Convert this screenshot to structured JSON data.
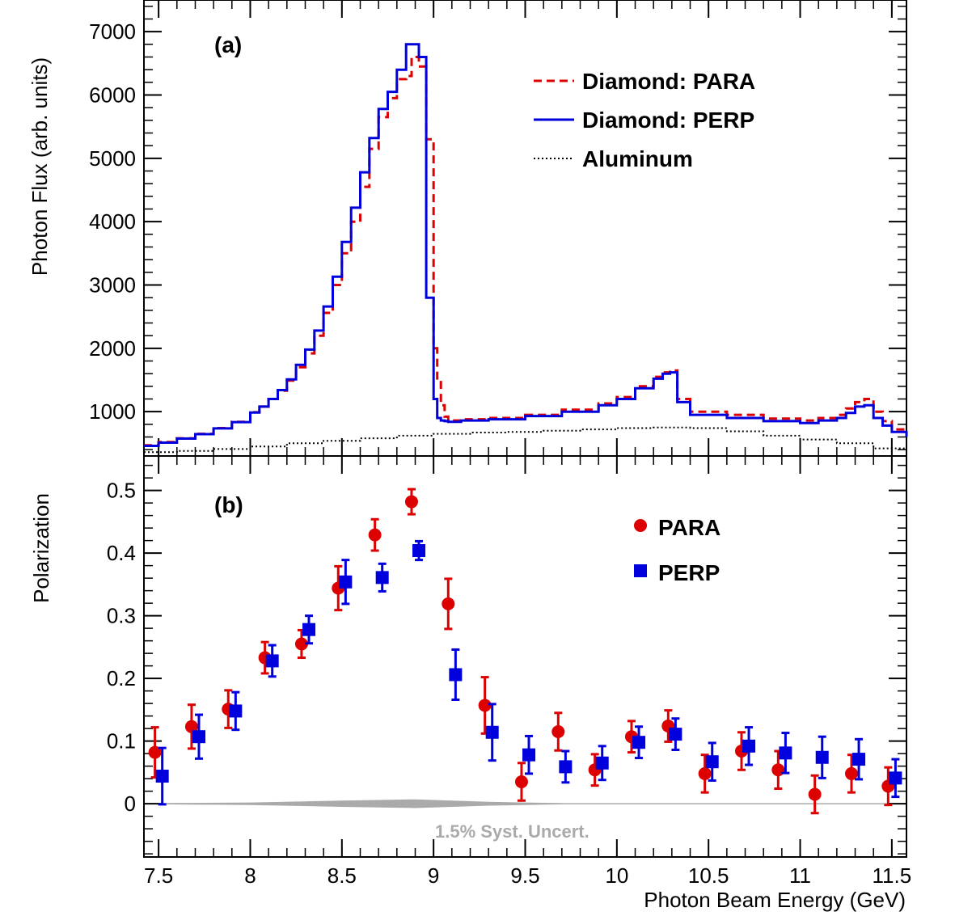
{
  "chart_data": [
    {
      "panel": "top",
      "panel_label": "(a)",
      "type": "line",
      "drawstyle": "steps",
      "ylabel": "Photon Flux (arb. units)",
      "xlabel": "",
      "xlim": [
        7.42,
        11.58
      ],
      "ylim": [
        300,
        7500
      ],
      "yticks": [
        1000,
        2000,
        3000,
        4000,
        5000,
        6000,
        7000
      ],
      "ytick_labels": [
        "1000",
        "2000",
        "3000",
        "4000",
        "5000",
        "6000",
        "7000"
      ],
      "legend_position": "top-right",
      "series": [
        {
          "name": "Diamond: PARA",
          "color": "#dd0000",
          "linestyle": "dashed",
          "x": [
            7.42,
            7.5,
            7.6,
            7.7,
            7.8,
            7.9,
            8.0,
            8.05,
            8.1,
            8.15,
            8.2,
            8.25,
            8.3,
            8.35,
            8.4,
            8.45,
            8.5,
            8.55,
            8.6,
            8.65,
            8.7,
            8.75,
            8.8,
            8.85,
            8.88,
            8.92,
            8.96,
            9.0,
            9.02,
            9.04,
            9.06,
            9.08,
            9.15,
            9.3,
            9.5,
            9.7,
            9.9,
            10.0,
            10.1,
            10.2,
            10.25,
            10.29,
            10.33,
            10.4,
            10.6,
            10.8,
            11.0,
            11.1,
            11.2,
            11.25,
            11.3,
            11.35,
            11.4,
            11.45,
            11.5,
            11.58
          ],
          "values": [
            470,
            520,
            580,
            650,
            740,
            840,
            990,
            1080,
            1200,
            1330,
            1490,
            1700,
            1920,
            2200,
            2560,
            3000,
            3500,
            4000,
            4550,
            5150,
            5650,
            5950,
            6250,
            6300,
            6600,
            6450,
            5300,
            2000,
            1500,
            1100,
            920,
            860,
            880,
            900,
            950,
            1030,
            1130,
            1230,
            1400,
            1550,
            1620,
            1650,
            1200,
            1000,
            950,
            890,
            860,
            900,
            950,
            1050,
            1150,
            1200,
            1000,
            850,
            720,
            620
          ]
        },
        {
          "name": "Diamond: PERP",
          "color": "#0000dd",
          "linestyle": "solid",
          "x": [
            7.42,
            7.5,
            7.6,
            7.7,
            7.8,
            7.9,
            8.0,
            8.05,
            8.1,
            8.15,
            8.2,
            8.25,
            8.3,
            8.35,
            8.4,
            8.45,
            8.5,
            8.55,
            8.6,
            8.65,
            8.7,
            8.75,
            8.8,
            8.85,
            8.88,
            8.92,
            8.96,
            9.0,
            9.02,
            9.04,
            9.06,
            9.08,
            9.15,
            9.3,
            9.5,
            9.7,
            9.9,
            10.0,
            10.1,
            10.2,
            10.25,
            10.29,
            10.33,
            10.4,
            10.6,
            10.8,
            11.0,
            11.1,
            11.2,
            11.25,
            11.3,
            11.35,
            11.4,
            11.45,
            11.5,
            11.58
          ],
          "values": [
            460,
            510,
            575,
            645,
            735,
            835,
            985,
            1080,
            1200,
            1340,
            1510,
            1740,
            1980,
            2280,
            2660,
            3130,
            3680,
            4220,
            4780,
            5320,
            5780,
            6050,
            6400,
            6800,
            6800,
            6600,
            2800,
            1200,
            900,
            860,
            850,
            840,
            860,
            880,
            930,
            1000,
            1100,
            1200,
            1370,
            1520,
            1600,
            1620,
            1150,
            950,
            900,
            850,
            820,
            860,
            900,
            980,
            1080,
            1100,
            900,
            780,
            680,
            600
          ]
        },
        {
          "name": "Aluminum",
          "color": "#000000",
          "linestyle": "dotted",
          "x": [
            7.42,
            7.6,
            7.8,
            8.0,
            8.2,
            8.4,
            8.6,
            8.8,
            9.0,
            9.2,
            9.4,
            9.6,
            9.8,
            10.0,
            10.2,
            10.4,
            10.6,
            10.8,
            11.0,
            11.2,
            11.4,
            11.58
          ],
          "values": [
            360,
            380,
            410,
            450,
            500,
            540,
            580,
            620,
            650,
            670,
            680,
            700,
            720,
            740,
            750,
            740,
            690,
            620,
            560,
            500,
            420,
            380
          ]
        }
      ]
    },
    {
      "panel": "bottom",
      "panel_label": "(b)",
      "type": "scatter",
      "ylabel": "Polarization",
      "xlabel": "Photon Beam Energy (GeV)",
      "xlim": [
        7.42,
        11.58
      ],
      "ylim": [
        -0.085,
        0.555
      ],
      "xticks": [
        7.5,
        8,
        8.5,
        9,
        9.5,
        10,
        10.5,
        11,
        11.5
      ],
      "xtick_labels": [
        "7.5",
        "8",
        "8.5",
        "9",
        "9.5",
        "10",
        "10.5",
        "11",
        "11.5"
      ],
      "yticks": [
        0,
        0.1,
        0.2,
        0.3,
        0.4,
        0.5
      ],
      "ytick_labels": [
        "0",
        "0.1",
        "0.2",
        "0.3",
        "0.4",
        "0.5"
      ],
      "legend_position": "top-right",
      "band_label": "1.5% Syst. Uncert.",
      "band_color": "#aaaaaa",
      "band": {
        "x": [
          7.5,
          8.0,
          8.5,
          8.9,
          9.3,
          9.7
        ],
        "half_width": [
          0.001,
          0.002,
          0.005,
          0.007,
          0.003,
          0.001
        ]
      },
      "series": [
        {
          "name": "PARA",
          "color": "#dd0000",
          "marker": "circle",
          "x": [
            7.48,
            7.68,
            7.88,
            8.08,
            8.28,
            8.48,
            8.68,
            8.88,
            9.08,
            9.28,
            9.48,
            9.68,
            9.88,
            10.08,
            10.28,
            10.48,
            10.68,
            10.88,
            11.08,
            11.28,
            11.48
          ],
          "values": [
            0.082,
            0.123,
            0.151,
            0.233,
            0.255,
            0.344,
            0.429,
            0.482,
            0.319,
            0.157,
            0.035,
            0.115,
            0.054,
            0.107,
            0.124,
            0.048,
            0.084,
            0.054,
            0.015,
            0.048,
            0.028
          ],
          "errors": [
            0.04,
            0.035,
            0.03,
            0.025,
            0.022,
            0.035,
            0.025,
            0.02,
            0.04,
            0.045,
            0.03,
            0.03,
            0.025,
            0.025,
            0.025,
            0.03,
            0.03,
            0.03,
            0.03,
            0.03,
            0.03
          ]
        },
        {
          "name": "PERP",
          "color": "#0000dd",
          "marker": "square",
          "x": [
            7.52,
            7.72,
            7.92,
            8.12,
            8.32,
            8.52,
            8.72,
            8.92,
            9.12,
            9.32,
            9.52,
            9.72,
            9.92,
            10.12,
            10.32,
            10.52,
            10.72,
            10.92,
            11.12,
            11.32,
            11.52
          ],
          "values": [
            0.044,
            0.107,
            0.148,
            0.228,
            0.278,
            0.354,
            0.361,
            0.404,
            0.206,
            0.114,
            0.078,
            0.059,
            0.065,
            0.098,
            0.111,
            0.067,
            0.092,
            0.081,
            0.074,
            0.071,
            0.041
          ],
          "errors": [
            0.045,
            0.035,
            0.03,
            0.025,
            0.022,
            0.035,
            0.022,
            0.015,
            0.04,
            0.045,
            0.03,
            0.025,
            0.027,
            0.025,
            0.025,
            0.03,
            0.03,
            0.032,
            0.033,
            0.032,
            0.03
          ]
        }
      ]
    }
  ]
}
